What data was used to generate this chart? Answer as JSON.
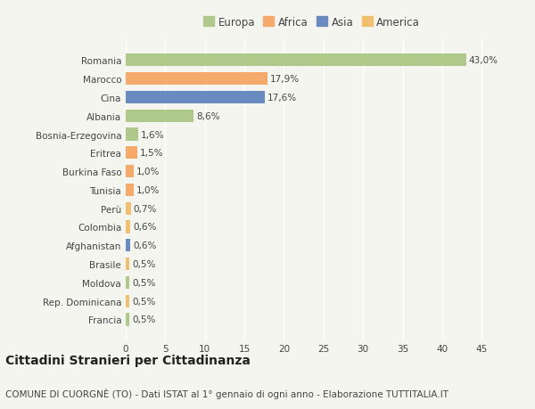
{
  "categories": [
    "Francia",
    "Rep. Dominicana",
    "Moldova",
    "Brasile",
    "Afghanistan",
    "Colombia",
    "Perù",
    "Tunisia",
    "Burkina Faso",
    "Eritrea",
    "Bosnia-Erzegovina",
    "Albania",
    "Cina",
    "Marocco",
    "Romania"
  ],
  "values": [
    0.5,
    0.5,
    0.5,
    0.5,
    0.6,
    0.6,
    0.7,
    1.0,
    1.0,
    1.5,
    1.6,
    8.6,
    17.6,
    17.9,
    43.0
  ],
  "colors": [
    "#aec98a",
    "#f0c070",
    "#aec98a",
    "#f0c070",
    "#6a8bbf",
    "#f0c070",
    "#f0c070",
    "#f5a96a",
    "#f5a96a",
    "#f5a96a",
    "#aec98a",
    "#aec98a",
    "#6a8bbf",
    "#f5a96a",
    "#aec98a"
  ],
  "labels": [
    "0,5%",
    "0,5%",
    "0,5%",
    "0,5%",
    "0,6%",
    "0,6%",
    "0,7%",
    "1,0%",
    "1,0%",
    "1,5%",
    "1,6%",
    "8,6%",
    "17,6%",
    "17,9%",
    "43,0%"
  ],
  "legend_labels": [
    "Europa",
    "Africa",
    "Asia",
    "America"
  ],
  "legend_colors": [
    "#aec98a",
    "#f5a96a",
    "#6a8bbf",
    "#f0c070"
  ],
  "title": "Cittadini Stranieri per Cittadinanza",
  "subtitle": "COMUNE DI CUORGNÈ (TO) - Dati ISTAT al 1° gennaio di ogni anno - Elaborazione TUTTITALIA.IT",
  "xlim": [
    0,
    47
  ],
  "xticks": [
    0,
    5,
    10,
    15,
    20,
    25,
    30,
    35,
    40,
    45
  ],
  "background_color": "#f5f5f0",
  "bar_height": 0.68,
  "grid_color": "#ffffff",
  "title_fontsize": 10,
  "subtitle_fontsize": 7.5,
  "label_fontsize": 7.5,
  "tick_fontsize": 7.5,
  "legend_fontsize": 8.5
}
